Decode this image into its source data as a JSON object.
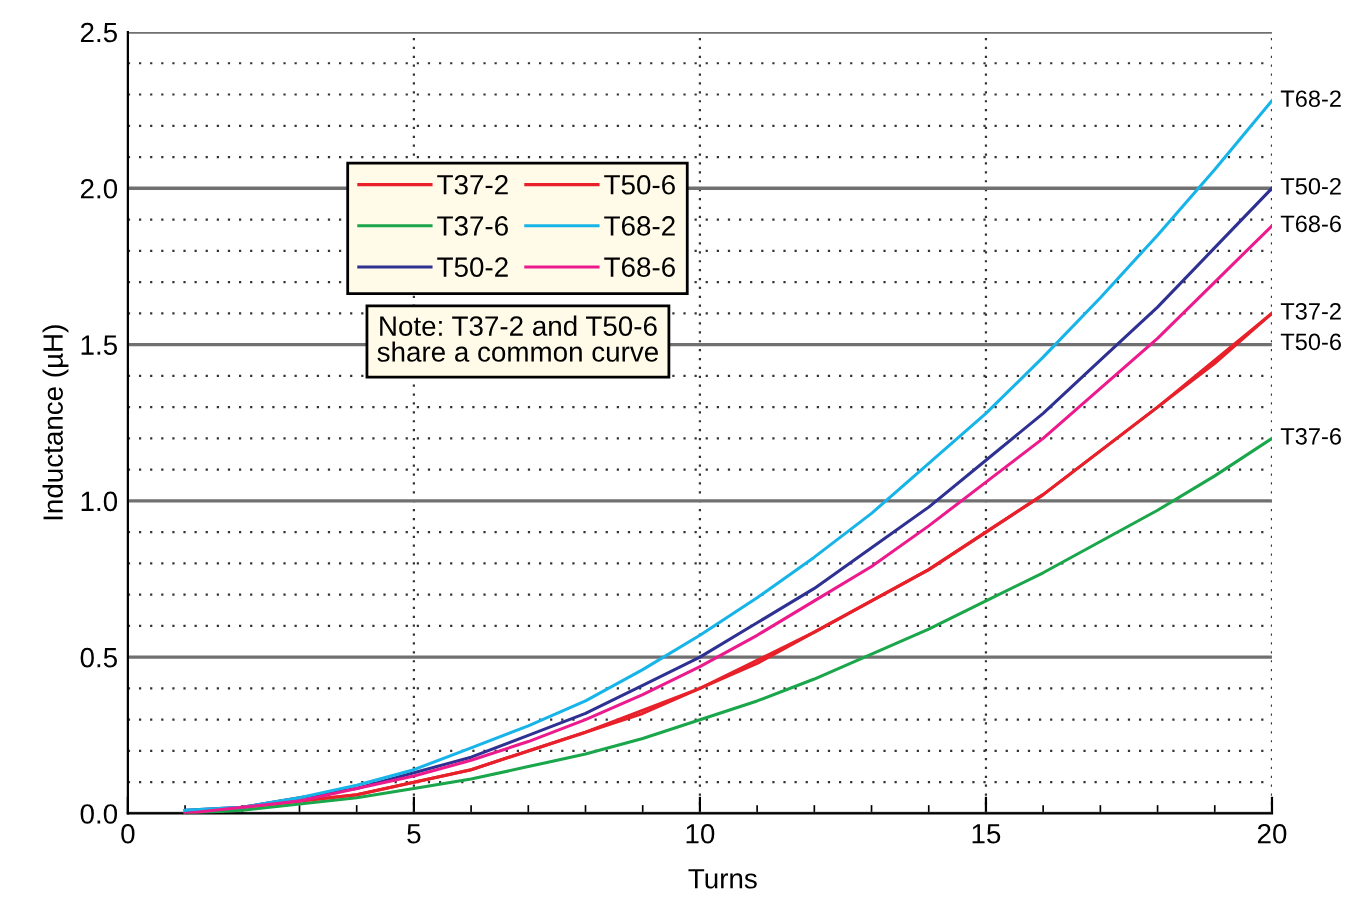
{
  "chart_data": {
    "type": "line",
    "xlabel": "Turns",
    "ylabel": "Inductance (µH)",
    "x": [
      1,
      2,
      3,
      4,
      5,
      6,
      7,
      8,
      9,
      10,
      11,
      12,
      13,
      14,
      15,
      16,
      17,
      18,
      19,
      20
    ],
    "series": [
      {
        "name": "T37-2",
        "color": "#e8202a",
        "values": [
          0.0,
          0.02,
          0.04,
          0.06,
          0.1,
          0.14,
          0.2,
          0.26,
          0.32,
          0.4,
          0.48,
          0.58,
          0.68,
          0.78,
          0.9,
          1.02,
          1.16,
          1.3,
          1.44,
          1.6
        ]
      },
      {
        "name": "T37-6",
        "color": "#1aa64a",
        "values": [
          0.0,
          0.01,
          0.03,
          0.05,
          0.08,
          0.11,
          0.15,
          0.19,
          0.24,
          0.3,
          0.36,
          0.43,
          0.51,
          0.59,
          0.68,
          0.77,
          0.87,
          0.97,
          1.08,
          1.2
        ]
      },
      {
        "name": "T50-2",
        "color": "#2e3192",
        "values": [
          0.01,
          0.02,
          0.05,
          0.08,
          0.13,
          0.18,
          0.25,
          0.32,
          0.41,
          0.5,
          0.61,
          0.72,
          0.85,
          0.98,
          1.13,
          1.28,
          1.45,
          1.62,
          1.81,
          2.0
        ]
      },
      {
        "name": "T50-6",
        "color": "#e8202a",
        "x": [
          2,
          4,
          6,
          8,
          10,
          12,
          14,
          16,
          18,
          20
        ],
        "values": [
          0.02,
          0.06,
          0.14,
          0.26,
          0.4,
          0.58,
          0.78,
          1.02,
          1.3,
          1.6
        ]
      },
      {
        "name": "T68-2",
        "color": "#16b4e8",
        "values": [
          0.01,
          0.02,
          0.05,
          0.09,
          0.14,
          0.21,
          0.28,
          0.36,
          0.46,
          0.57,
          0.69,
          0.82,
          0.96,
          1.12,
          1.28,
          1.46,
          1.65,
          1.85,
          2.06,
          2.28
        ]
      },
      {
        "name": "T68-6",
        "color": "#ec1a8c",
        "values": [
          0.0,
          0.02,
          0.04,
          0.08,
          0.12,
          0.17,
          0.23,
          0.3,
          0.38,
          0.47,
          0.57,
          0.68,
          0.79,
          0.92,
          1.06,
          1.2,
          1.36,
          1.52,
          1.7,
          1.88
        ]
      }
    ],
    "xlim": [
      0,
      20
    ],
    "xticks": [
      0,
      5,
      10,
      15,
      20
    ],
    "ylim": [
      0,
      2.5
    ],
    "yticks": [
      {
        "value": 0,
        "label": "0.0"
      },
      {
        "value": 0.5,
        "label": "0.5"
      },
      {
        "value": 1,
        "label": "1.0"
      },
      {
        "value": 1.5,
        "label": "1.5"
      },
      {
        "value": 2,
        "label": "2.0"
      },
      {
        "value": 2.5,
        "label": "2.5"
      }
    ],
    "grid": true,
    "legend": "top left",
    "marker": "none",
    "line_style": "solid",
    "annotations": [
      "Note: T37-2 and T50-6\nshare a common curve"
    ]
  }
}
